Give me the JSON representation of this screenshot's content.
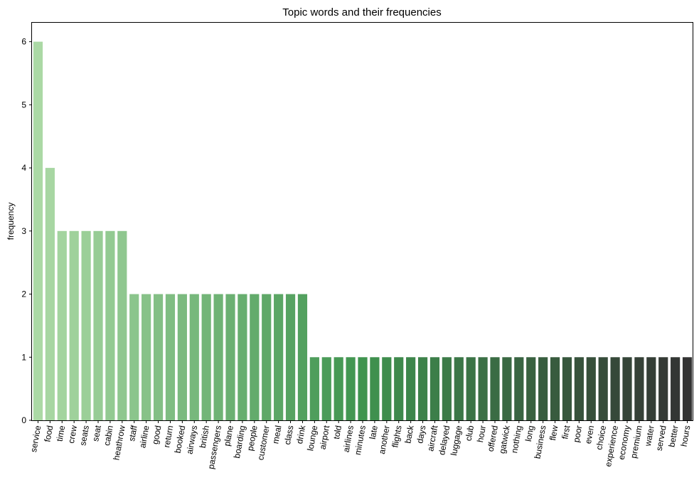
{
  "chart_data": {
    "type": "bar",
    "title": "Topic words and their frequencies",
    "xlabel": "",
    "ylabel": "frequency",
    "ylim": [
      0,
      6.3
    ],
    "yticks": [
      0,
      1,
      2,
      3,
      4,
      5,
      6
    ],
    "grid": false,
    "legend": "none",
    "color_gradient": {
      "start": "#abd9a5",
      "mid": "#3f944f",
      "end": "#333333"
    },
    "categories": [
      "service",
      "food",
      "time",
      "crew",
      "seats",
      "seat",
      "cabin",
      "heathrow",
      "staff",
      "airline",
      "good",
      "return",
      "booked",
      "airways",
      "british",
      "passengers",
      "plane",
      "boarding",
      "people",
      "customer",
      "meal",
      "class",
      "drink",
      "lounge",
      "airport",
      "told",
      "airlines",
      "minutes",
      "late",
      "another",
      "flights",
      "back",
      "days",
      "aircraft",
      "delayed",
      "luggage",
      "club",
      "hour",
      "offered",
      "gatwick",
      "nothing",
      "long",
      "business",
      "flew",
      "first",
      "poor",
      "even",
      "choice",
      "experience",
      "economy",
      "premium",
      "water",
      "served",
      "better",
      "hours"
    ],
    "values": [
      6,
      4,
      3,
      3,
      3,
      3,
      3,
      3,
      2,
      2,
      2,
      2,
      2,
      2,
      2,
      2,
      2,
      2,
      2,
      2,
      2,
      2,
      2,
      1,
      1,
      1,
      1,
      1,
      1,
      1,
      1,
      1,
      1,
      1,
      1,
      1,
      1,
      1,
      1,
      1,
      1,
      1,
      1,
      1,
      1,
      1,
      1,
      1,
      1,
      1,
      1,
      1,
      1,
      1,
      1
    ]
  }
}
